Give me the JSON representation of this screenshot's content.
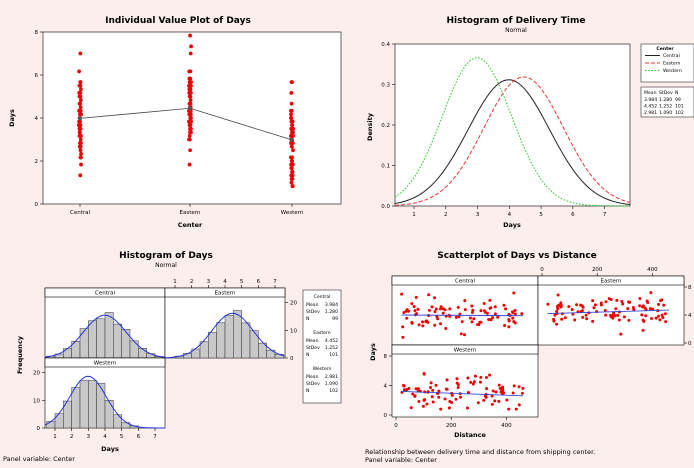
{
  "charts": {
    "ivp": {
      "title": "Individual Value Plot of Days",
      "xlabel": "Center",
      "ylabel": "Days"
    },
    "hdt": {
      "title": "Histogram of Delivery Time",
      "subtitle": "Normal",
      "xlabel": "Days",
      "ylabel": "Density",
      "legend_title": "Center",
      "table_headers": [
        "Mean",
        "StDev",
        "N"
      ]
    },
    "hd": {
      "title": "Histogram of Days",
      "subtitle": "Normal",
      "xlabel": "Days",
      "ylabel": "Frequency",
      "panel_note": "Panel variable: Center",
      "mean_label": "Mean",
      "stdev_label": "StDev",
      "n_label": "N"
    },
    "sc": {
      "title": "Scatterplot of Days vs Distance",
      "xlabel": "Distance",
      "ylabel": "Days",
      "footnote1": "Relationship between delivery time and distance from shipping center.",
      "footnote2": "Panel variable: Center"
    }
  },
  "chart_data": [
    {
      "type": "scatter",
      "title": "Individual Value Plot of Days",
      "xlabel": "Center",
      "ylabel": "Days",
      "categories": [
        "Central",
        "Eastern",
        "Western"
      ],
      "ylim": [
        0,
        8
      ],
      "yticks": [
        0,
        2,
        4,
        6,
        8
      ],
      "group_ranges": [
        [
          1.3,
          7.0
        ],
        [
          1.9,
          7.8
        ],
        [
          0.9,
          5.7
        ]
      ],
      "means": [
        3.984,
        4.452,
        2.981
      ],
      "color": "#ee0000"
    },
    {
      "type": "line",
      "title": "Histogram of Delivery Time",
      "subtitle": "Normal",
      "xlabel": "Days",
      "ylabel": "Density",
      "xlim": [
        0.4,
        7.8
      ],
      "xticks": [
        1,
        2,
        3,
        4,
        5,
        6,
        7
      ],
      "ylim": [
        0,
        0.4
      ],
      "yticks": [
        0.0,
        0.1,
        0.2,
        0.3,
        0.4
      ],
      "series": [
        {
          "name": "Central",
          "mean": 3.984,
          "stdev": 1.28,
          "n": 99,
          "color": "#222222",
          "dash": "none"
        },
        {
          "name": "Eastern",
          "mean": 4.452,
          "stdev": 1.252,
          "n": 101,
          "color": "#ee3333",
          "dash": "4,2"
        },
        {
          "name": "Western",
          "mean": 2.981,
          "stdev": 1.09,
          "n": 102,
          "color": "#22cc22",
          "dash": "1.6,1.6"
        }
      ]
    },
    {
      "type": "bar",
      "title": "Histogram of Days",
      "subtitle": "Normal",
      "xlabel": "Days",
      "ylabel": "Frequency",
      "panels": [
        "Central",
        "Eastern",
        "Western"
      ],
      "xticks": [
        1,
        2,
        3,
        4,
        5,
        6,
        7
      ],
      "yticks": [
        0,
        10,
        20
      ],
      "bin_width": 0.5,
      "series": [
        {
          "name": "Central",
          "mean": 3.984,
          "stdev": 1.28,
          "n": 99
        },
        {
          "name": "Eastern",
          "mean": 4.452,
          "stdev": 1.252,
          "n": 101
        },
        {
          "name": "Western",
          "mean": 2.981,
          "stdev": 1.09,
          "n": 102
        }
      ]
    },
    {
      "type": "scatter",
      "title": "Scatterplot of Days vs Distance",
      "xlabel": "Distance",
      "ylabel": "Days",
      "panels": [
        "Central",
        "Eastern",
        "Western"
      ],
      "xlim": [
        0,
        500
      ],
      "xticks": [
        0,
        200,
        400
      ],
      "ylim": [
        0,
        8
      ],
      "yticks": [
        0,
        4,
        8
      ],
      "series": [
        {
          "name": "Central",
          "mean": 3.984,
          "fit": [
            4.0,
            3.9
          ]
        },
        {
          "name": "Eastern",
          "mean": 4.452,
          "fit": [
            4.2,
            4.7
          ]
        },
        {
          "name": "Western",
          "mean": 2.981,
          "fit": [
            3.2,
            2.6
          ]
        }
      ]
    }
  ]
}
